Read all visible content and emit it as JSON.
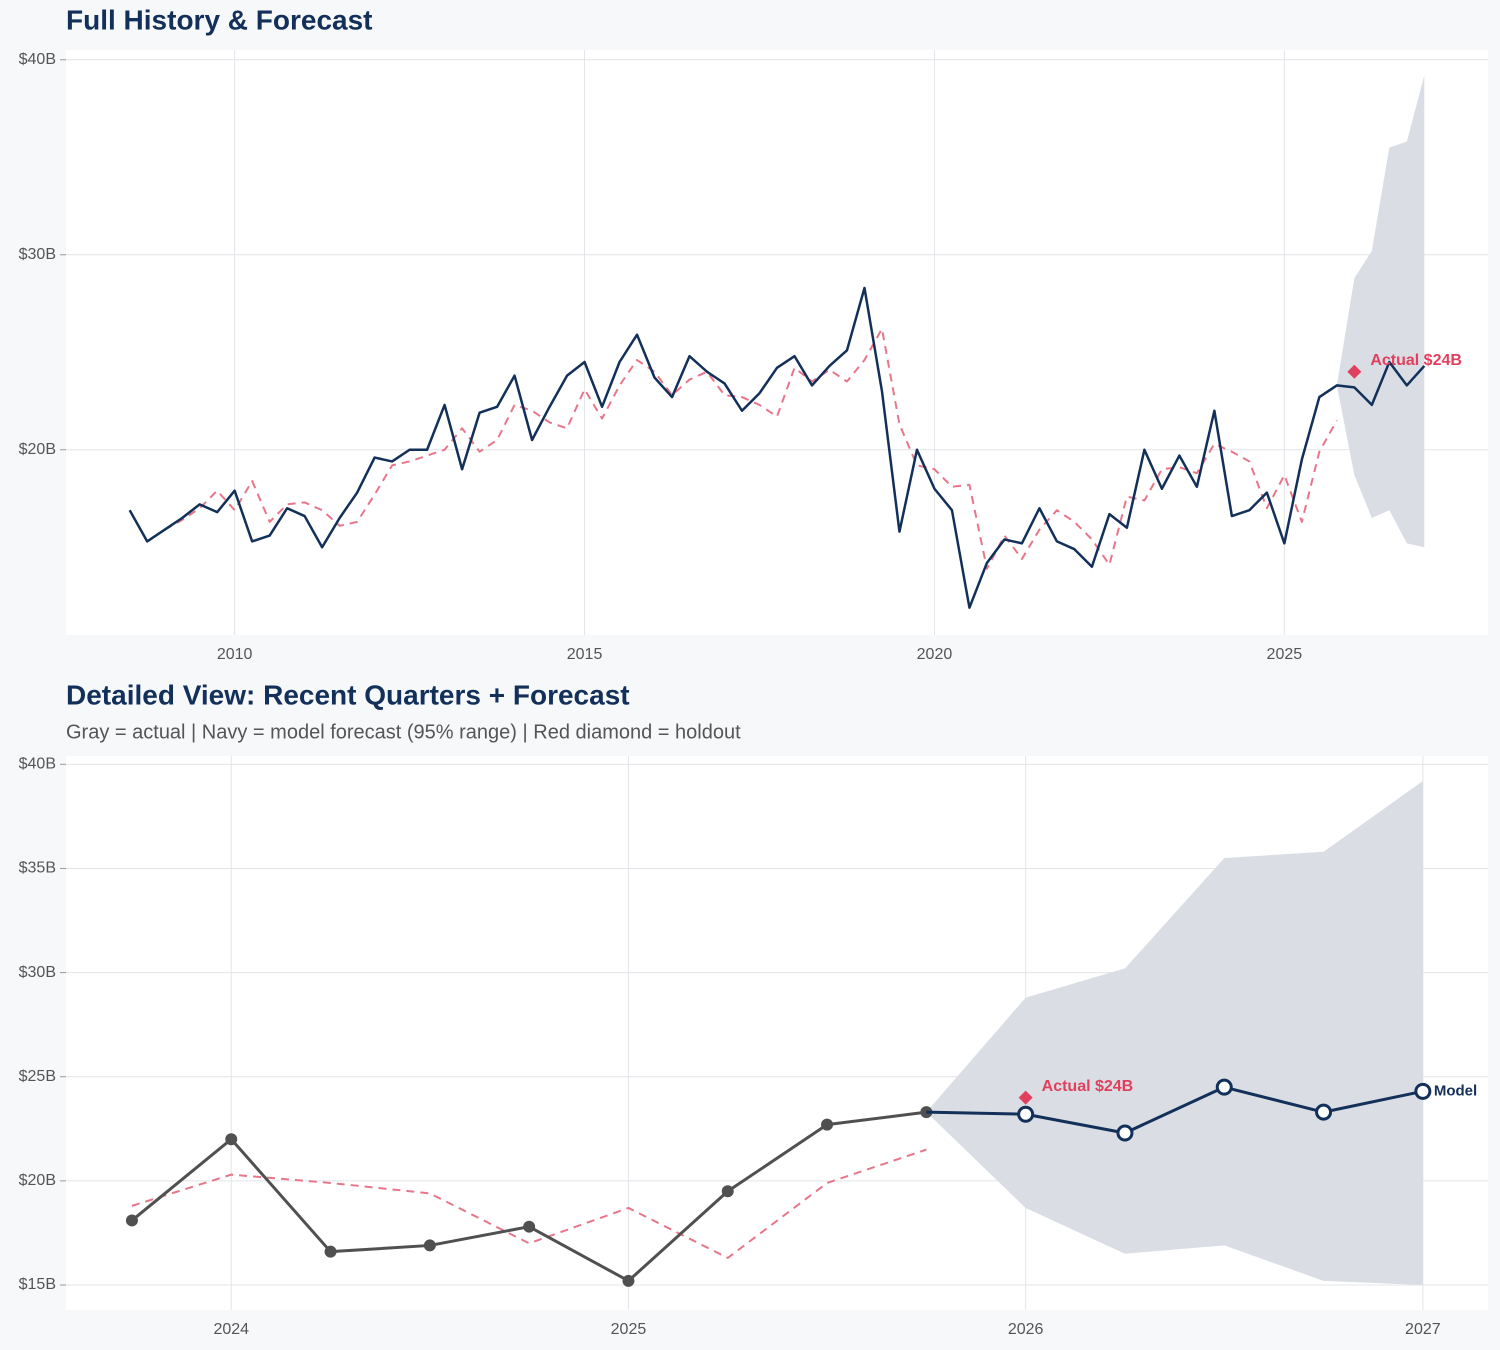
{
  "chart_data": [
    {
      "type": "line",
      "title": "Full History & Forecast",
      "x": [
        2008.5,
        2008.75,
        2009,
        2009.25,
        2009.5,
        2009.75,
        2010,
        2010.25,
        2010.5,
        2010.75,
        2011,
        2011.25,
        2011.5,
        2011.75,
        2012,
        2012.25,
        2012.5,
        2012.75,
        2013,
        2013.25,
        2013.5,
        2013.75,
        2014,
        2014.25,
        2014.5,
        2014.75,
        2015,
        2015.25,
        2015.5,
        2015.75,
        2016,
        2016.25,
        2016.5,
        2016.75,
        2017,
        2017.25,
        2017.5,
        2017.75,
        2018,
        2018.25,
        2018.5,
        2018.75,
        2019,
        2019.25,
        2019.5,
        2019.75,
        2020,
        2020.25,
        2020.5,
        2020.75,
        2021,
        2021.25,
        2021.5,
        2021.75,
        2022,
        2022.25,
        2022.5,
        2022.75,
        2023,
        2023.25,
        2023.5,
        2023.75,
        2024,
        2024.25,
        2024.5,
        2024.75,
        2025,
        2025.25,
        2025.5,
        2025.75,
        2026,
        2026.25,
        2026.5,
        2026.75,
        2027
      ],
      "series": [
        {
          "color": "#e8768a",
          "dash": true,
          "values": [
            null,
            null,
            15.9,
            16.4,
            17.0,
            17.9,
            16.9,
            18.4,
            16.3,
            17.2,
            17.3,
            16.9,
            16.1,
            16.3,
            17.7,
            19.2,
            19.4,
            19.7,
            20.0,
            21.1,
            19.9,
            20.5,
            22.3,
            22.0,
            21.4,
            21.1,
            23.1,
            21.6,
            23.3,
            24.6,
            24.0,
            22.8,
            23.6,
            24.0,
            22.8,
            22.7,
            22.3,
            21.7,
            24.2,
            23.5,
            24.1,
            23.5,
            24.6,
            26.2,
            21.3,
            19.2,
            19.0,
            18.1,
            18.2,
            13.9,
            15.6,
            14.4,
            15.9,
            16.9,
            16.3,
            15.4,
            14.1,
            17.6,
            17.4,
            19.0,
            19.1,
            18.8,
            20.3,
            19.9,
            19.4,
            17.0,
            18.7,
            16.3,
            19.9,
            21.5,
            null,
            null,
            null,
            null,
            null
          ]
        },
        {
          "color": "#12305a",
          "values": [
            16.9,
            15.3,
            15.9,
            16.5,
            17.2,
            16.8,
            17.9,
            15.3,
            15.6,
            17.0,
            16.6,
            15.0,
            16.5,
            17.8,
            19.6,
            19.4,
            20.0,
            20.0,
            22.3,
            19.0,
            21.9,
            22.2,
            23.8,
            20.5,
            22.2,
            23.8,
            24.5,
            22.2,
            24.5,
            25.9,
            23.7,
            22.7,
            24.8,
            24.0,
            23.4,
            22.0,
            22.9,
            24.2,
            24.8,
            23.3,
            24.3,
            25.1,
            28.3,
            23.0,
            15.8,
            20.0,
            18.0,
            16.9,
            11.9,
            14.2,
            15.4,
            15.2,
            17.0,
            15.3,
            14.9,
            14.0,
            16.7,
            16.0,
            20.0,
            18.0,
            19.7,
            18.1,
            22.0,
            16.6,
            16.9,
            17.8,
            15.2,
            19.5,
            22.7,
            23.3,
            23.2,
            22.3,
            24.5,
            23.3,
            24.3
          ]
        }
      ],
      "band": {
        "color": "#dadee4",
        "x": [
          2025.75,
          2026,
          2026.25,
          2026.5,
          2026.75,
          2027
        ],
        "lower": [
          23.3,
          18.7,
          16.5,
          16.9,
          15.2,
          15.0
        ],
        "upper": [
          23.3,
          28.8,
          30.2,
          35.5,
          35.8,
          39.2
        ]
      },
      "holdout": {
        "x": 2026,
        "value": 24,
        "label": "Actual $24B",
        "color": "#e0405e"
      },
      "xlim": [
        2007.59,
        2027.91
      ],
      "xticks": [
        2010,
        2015,
        2020,
        2025
      ],
      "ylim": [
        10.5,
        40.5
      ],
      "yticks": [
        {
          "value": 20,
          "label": "$20B"
        },
        {
          "value": 30,
          "label": "$30B"
        },
        {
          "value": 40,
          "label": "$40B"
        }
      ],
      "grid": true
    },
    {
      "type": "line",
      "title": "Detailed View: Recent Quarters + Forecast",
      "subtitle": "Gray = actual  |  Navy = model forecast (95% range)  |  Red diamond = holdout",
      "series": [
        {
          "color": "#e8768a",
          "dash": true,
          "x": [
            2023.75,
            2024,
            2024.25,
            2024.5,
            2024.75,
            2025,
            2025.25,
            2025.5,
            2025.75
          ],
          "values": [
            18.8,
            20.3,
            19.9,
            19.4,
            17.0,
            18.7,
            16.3,
            19.9,
            21.5
          ]
        },
        {
          "color": "#505050",
          "marker": "filled",
          "x": [
            2023.75,
            2024,
            2024.25,
            2024.5,
            2024.75,
            2025,
            2025.25,
            2025.5,
            2025.75
          ],
          "values": [
            18.1,
            22.0,
            16.6,
            16.9,
            17.8,
            15.2,
            19.5,
            22.7,
            23.3
          ]
        },
        {
          "name": "Model",
          "color": "#12305a",
          "marker": "hollow",
          "x": [
            2026,
            2026.25,
            2026.5,
            2026.75,
            2027
          ],
          "values": [
            23.2,
            22.3,
            24.5,
            23.3,
            24.3
          ]
        }
      ],
      "band": {
        "color": "#dadee4",
        "x": [
          2025.75,
          2026,
          2026.25,
          2026.5,
          2026.75,
          2027
        ],
        "lower": [
          23.3,
          18.7,
          16.5,
          16.9,
          15.2,
          15.0
        ],
        "upper": [
          23.3,
          28.8,
          30.2,
          35.5,
          35.8,
          39.2
        ]
      },
      "holdout": {
        "x": 2026,
        "value": 24,
        "label": "Actual $24B",
        "color": "#e0405e"
      },
      "xlim": [
        2023.584,
        2027.164
      ],
      "xticks": [
        2024,
        2025,
        2026,
        2027
      ],
      "ylim": [
        13.8,
        40.4
      ],
      "yticks": [
        {
          "value": 15,
          "label": "$15B"
        },
        {
          "value": 20,
          "label": "$20B"
        },
        {
          "value": 25,
          "label": "$25B"
        },
        {
          "value": 30,
          "label": "$30B"
        },
        {
          "value": 35,
          "label": "$35B"
        },
        {
          "value": 40,
          "label": "$40B"
        }
      ],
      "grid": true
    }
  ]
}
